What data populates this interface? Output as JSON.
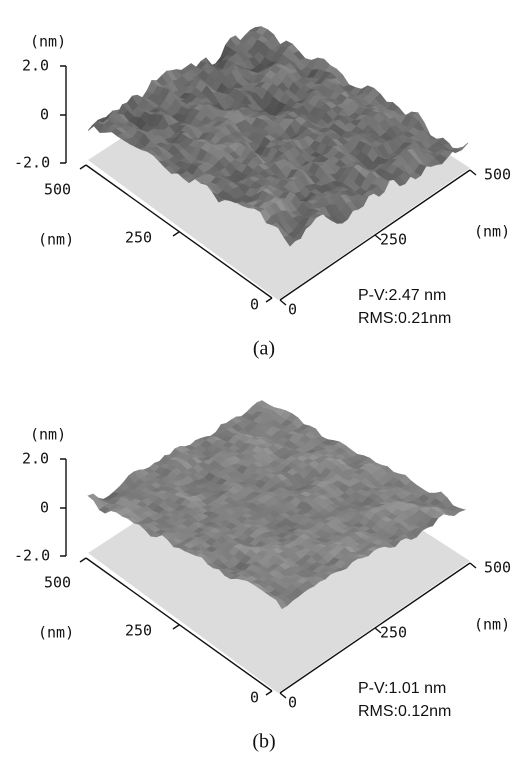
{
  "panels": [
    {
      "z_unit": "(nm)",
      "z_ticks": [
        "2.0",
        "0",
        "-2.0"
      ],
      "y_ticks": [
        "500",
        "250",
        "0"
      ],
      "y_unit": "(nm)",
      "x_ticks": [
        "0",
        "250",
        "500"
      ],
      "x_unit": "(nm)",
      "pv": "P-V:2.47 nm",
      "rms": "RMS:0.21nm",
      "caption": "(a)"
    },
    {
      "z_unit": "(nm)",
      "z_ticks": [
        "2.0",
        "0",
        "-2.0"
      ],
      "y_ticks": [
        "500",
        "250",
        "0"
      ],
      "y_unit": "(nm)",
      "x_ticks": [
        "0",
        "250",
        "500"
      ],
      "x_unit": "(nm)",
      "pv": "P-V:1.01 nm",
      "rms": "RMS:0.12nm",
      "caption": "(b)"
    }
  ]
}
